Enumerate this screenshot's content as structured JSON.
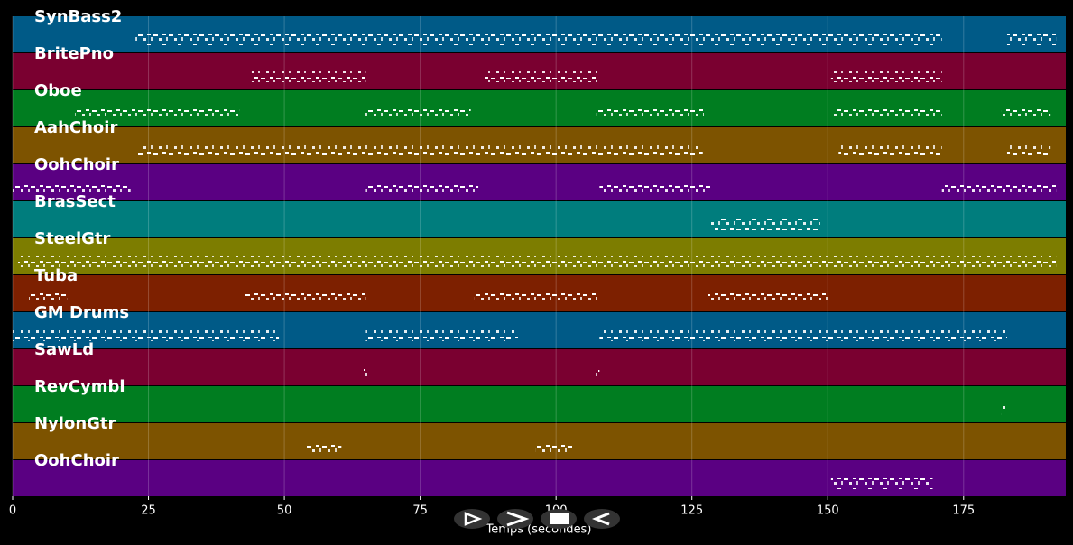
{
  "chart_data": {
    "type": "pianoroll",
    "xlabel": "Temps (secondes)",
    "xlim": [
      0,
      193.8
    ],
    "xticks": [
      0,
      25,
      50,
      75,
      100,
      125,
      150,
      175
    ],
    "grid": true,
    "tracks": [
      {
        "name": "SynBass2",
        "color": "#005a87",
        "segments": [
          [
            22.6,
            171
          ],
          [
            183,
            192
          ]
        ]
      },
      {
        "name": "BritePno",
        "color": "#7a0030",
        "segments": [
          [
            44,
            65
          ],
          [
            86.7,
            107.6
          ],
          [
            150.6,
            171
          ]
        ]
      },
      {
        "name": "Oboe",
        "color": "#007d20",
        "segments": [
          [
            11.5,
            41.7
          ],
          [
            64.8,
            84.3
          ],
          [
            107.4,
            127.2
          ],
          [
            151,
            171
          ],
          [
            182,
            191
          ]
        ]
      },
      {
        "name": "AahChoir",
        "color": "#7d5300",
        "segments": [
          [
            23,
            127
          ],
          [
            152,
            171
          ],
          [
            183,
            191
          ]
        ]
      },
      {
        "name": "OohChoir",
        "color": "#5a0082",
        "segments": [
          [
            0,
            21.7
          ],
          [
            65,
            85.7
          ],
          [
            108,
            128.5
          ],
          [
            171,
            192
          ]
        ]
      },
      {
        "name": "BrasSect",
        "color": "#007d7d",
        "segments": [
          [
            128.5,
            148.6
          ]
        ]
      },
      {
        "name": "SteelGtr",
        "color": "#7d7d00",
        "segments": [
          [
            1,
            192
          ]
        ]
      },
      {
        "name": "Tuba",
        "color": "#7d2000",
        "segments": [
          [
            3,
            10
          ],
          [
            42.7,
            65
          ],
          [
            85,
            107.6
          ],
          [
            128,
            150
          ]
        ]
      },
      {
        "name": "GM Drums",
        "color": "#005a87",
        "segments": [
          [
            0,
            49
          ],
          [
            65,
            93
          ],
          [
            108,
            183
          ]
        ]
      },
      {
        "name": "SawLd",
        "color": "#7a0030",
        "segments": [
          [
            64.6,
            65.3
          ],
          [
            107.3,
            108
          ]
        ]
      },
      {
        "name": "RevCymbl",
        "color": "#007d20",
        "segments": [
          [
            182,
            182.8
          ]
        ]
      },
      {
        "name": "NylonGtr",
        "color": "#7d5300",
        "segments": [
          [
            54,
            60.5
          ],
          [
            96.3,
            103
          ]
        ]
      },
      {
        "name": "OohChoir",
        "color": "#5a0082",
        "segments": [
          [
            150.6,
            169.3
          ]
        ]
      }
    ]
  }
}
